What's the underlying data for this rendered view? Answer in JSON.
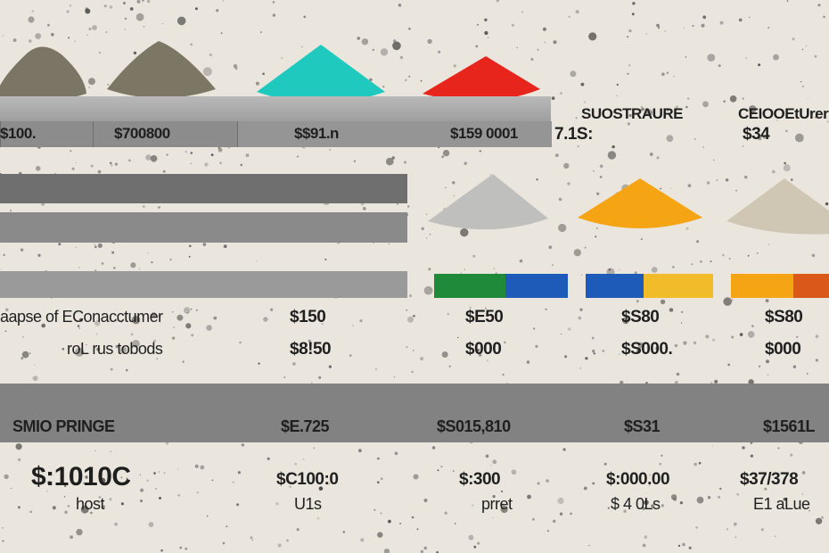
{
  "top_blocks": {
    "labels": [
      "$100.",
      "$700800",
      "$$91.n",
      "$159 0001"
    ]
  },
  "right_top": {
    "col1_heading": "SUOSTRAURE",
    "col1_value": "7.1S:",
    "col2_heading": "CEIOOEtUrer",
    "col2_value": "$34"
  },
  "rows": [
    {
      "label": "aapse of EConacctumer",
      "values": [
        "$150",
        "$E50",
        "$S80",
        "$S80"
      ]
    },
    {
      "label": "roL rus tobods",
      "values": [
        "$8!50",
        "$000",
        "$S000.",
        "$000"
      ]
    }
  ],
  "band": {
    "label": "SMIO PRINGE",
    "values": [
      "$E.725",
      "$S015,810",
      "$S31",
      "$1561L"
    ]
  },
  "bottom": {
    "values": [
      "$:1010C",
      "$C100:0",
      "$:300",
      "$:000.00",
      "$37/378"
    ],
    "captions": [
      "host",
      "U1s",
      "prret",
      "$ 4 0Ls",
      "E1 aLue"
    ]
  },
  "colors": {
    "background": "#ebe6dd",
    "pile_teal": "#1fc9bd",
    "pile_red": "#e8251c",
    "pile_orange": "#f5a413",
    "green": "#1f8a3a",
    "blue": "#1e5bb8",
    "yellow": "#f2bb2a",
    "dark_orange": "#d9581a"
  }
}
